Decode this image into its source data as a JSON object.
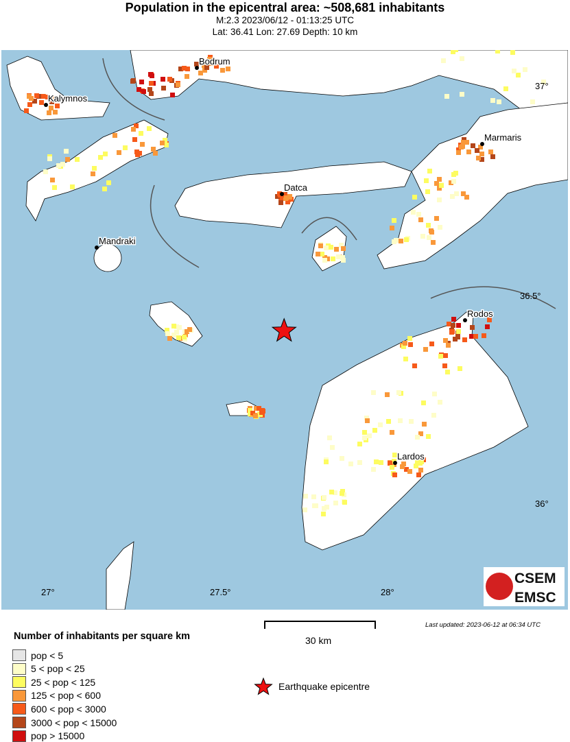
{
  "header": {
    "title": "Population in the epicentral area: ~508,681 inhabitants",
    "subtitle_time": "M:2.3 2023/06/12 - 01:13:25 UTC",
    "subtitle_loc": "Lat: 36.41 Lon: 27.69 Depth: 10 km"
  },
  "map": {
    "sea_color": "#9ec8e0",
    "land_color": "#ffffff",
    "epicentre": {
      "lat": 36.41,
      "lon": 27.69,
      "color": "#ee1111"
    },
    "places": [
      "Bodrum",
      "Kalymnos",
      "Marmaris",
      "Datca",
      "Mandraki",
      "Rodos",
      "Lardos"
    ],
    "lon_ticks": [
      "27°",
      "27.5°",
      "28°"
    ],
    "lat_ticks": [
      "37°",
      "36.5°",
      "36°"
    ],
    "logo": [
      "CSEM",
      "EMSC"
    ]
  },
  "scale": {
    "label": "30 km"
  },
  "last_updated": "Last updated: 2023-06-12 at 06:34 UTC",
  "legend": {
    "title": "Number of inhabitants per square km",
    "items": [
      {
        "label": "pop < 5",
        "color": "#e6e6e6"
      },
      {
        "label": "5 < pop < 25",
        "color": "#fefdc8"
      },
      {
        "label": "25 < pop < 125",
        "color": "#fdfc60"
      },
      {
        "label": "125 < pop < 600",
        "color": "#f9983a"
      },
      {
        "label": "600 < pop < 3000",
        "color": "#f65a1a"
      },
      {
        "label": "3000 < pop < 15000",
        "color": "#b4461a"
      },
      {
        "label": "pop > 15000",
        "color": "#d00f0f"
      }
    ],
    "epicentre_label": "Earthquake epicentre"
  }
}
